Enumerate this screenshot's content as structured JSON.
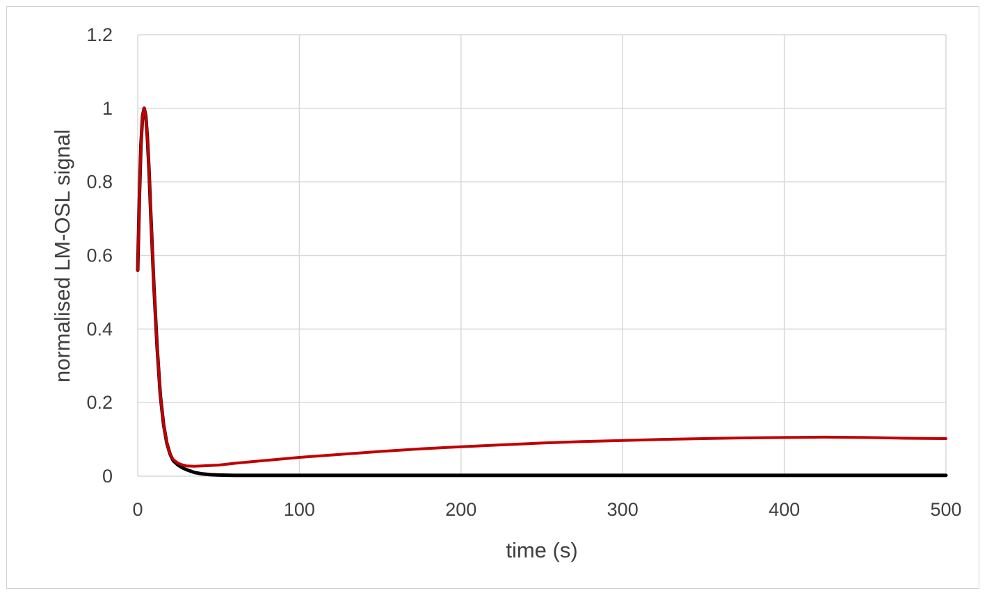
{
  "chart_data": {
    "type": "line",
    "xlabel": "time (s)",
    "ylabel": "normalised LM-OSL signal",
    "xlim": [
      0,
      500
    ],
    "ylim": [
      0,
      1.2
    ],
    "x_ticks": [
      0,
      100,
      200,
      300,
      400,
      500
    ],
    "x_tick_labels": [
      "0",
      "100",
      "200",
      "300",
      "400",
      "500"
    ],
    "y_ticks": [
      0,
      0.2,
      0.4,
      0.6,
      0.8,
      1.0,
      1.2
    ],
    "y_tick_labels": [
      "0",
      "0.2",
      "0.4",
      "0.6",
      "0.8",
      "1",
      "1.2"
    ],
    "grid": true,
    "legend": "none",
    "series": [
      {
        "color": "#c00000",
        "x": [
          0,
          1,
          2,
          3,
          4,
          5,
          6,
          7,
          8,
          10,
          12,
          14,
          16,
          18,
          20,
          22,
          25,
          28,
          30,
          35,
          40,
          50,
          60,
          80,
          100,
          125,
          150,
          175,
          200,
          225,
          250,
          275,
          300,
          325,
          350,
          375,
          400,
          425,
          450,
          475,
          500
        ],
        "y": [
          0.56,
          0.75,
          0.9,
          0.98,
          1.0,
          0.98,
          0.92,
          0.83,
          0.72,
          0.52,
          0.35,
          0.22,
          0.14,
          0.09,
          0.06,
          0.045,
          0.035,
          0.03,
          0.028,
          0.027,
          0.028,
          0.03,
          0.035,
          0.043,
          0.051,
          0.059,
          0.067,
          0.074,
          0.08,
          0.085,
          0.09,
          0.094,
          0.097,
          0.1,
          0.102,
          0.104,
          0.105,
          0.106,
          0.105,
          0.103,
          0.102
        ]
      },
      {
        "color": "#000000",
        "x": [
          0,
          1,
          2,
          3,
          4,
          5,
          6,
          7,
          8,
          10,
          12,
          14,
          16,
          18,
          20,
          22,
          25,
          28,
          30,
          35,
          40,
          45,
          50,
          60,
          100,
          200,
          300,
          400,
          500
        ],
        "y": [
          0.56,
          0.75,
          0.9,
          0.98,
          1.0,
          0.98,
          0.92,
          0.83,
          0.72,
          0.52,
          0.35,
          0.22,
          0.14,
          0.09,
          0.06,
          0.042,
          0.03,
          0.022,
          0.018,
          0.01,
          0.006,
          0.004,
          0.003,
          0.002,
          0.002,
          0.002,
          0.002,
          0.002,
          0.002
        ]
      }
    ]
  }
}
